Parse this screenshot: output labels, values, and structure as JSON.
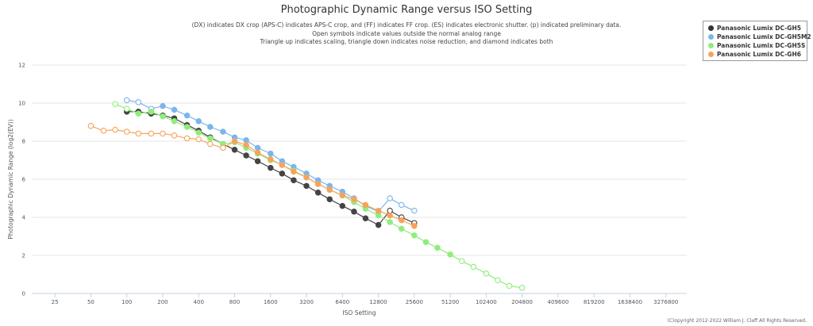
{
  "chart_data": {
    "type": "line",
    "title": "Photographic Dynamic Range versus ISO Setting",
    "subtitle": [
      "(DX) indicates DX crop (APS-C) indicates APS-C crop, and (FF) indicates FF crop. (ES) indicates electronic shutter. (p) indicated preliminary data.",
      "Open symbols indicate values outside the normal analog range",
      "Triangle up indicates scaling, triangle down indicates noise reduction, and diamond indicates both"
    ],
    "xlabel": "ISO Setting",
    "ylabel": "Photographic Dynamic Range (log2(EV))",
    "x_scale": "log2",
    "x_ticks": [
      25,
      50,
      100,
      200,
      400,
      800,
      1600,
      3200,
      6400,
      12800,
      25600,
      51200,
      102400,
      204800,
      409600,
      819200,
      1638400,
      3276800
    ],
    "x_range": [
      16,
      4900000
    ],
    "y_ticks": [
      0,
      2,
      4,
      6,
      8,
      10,
      12
    ],
    "y_range": [
      0,
      12
    ],
    "grid": true,
    "legend_position": "top-right",
    "series": [
      {
        "name": "Panasonic Lumix DC-GH5",
        "color": "#444444",
        "x": [
          100,
          125,
          160,
          200,
          250,
          320,
          400,
          500,
          640,
          800,
          1000,
          1250,
          1600,
          2000,
          2500,
          3200,
          4000,
          5000,
          6400,
          8000,
          10000,
          12800,
          16000,
          20000,
          25600
        ],
        "y": [
          9.55,
          9.55,
          9.45,
          9.35,
          9.2,
          8.85,
          8.55,
          8.2,
          7.85,
          7.55,
          7.25,
          6.95,
          6.6,
          6.3,
          5.95,
          5.65,
          5.3,
          4.95,
          4.6,
          4.3,
          3.95,
          3.6,
          4.35,
          4.0,
          3.7
        ],
        "open": [
          false,
          false,
          false,
          false,
          false,
          false,
          false,
          false,
          false,
          false,
          false,
          false,
          false,
          false,
          false,
          false,
          false,
          false,
          false,
          false,
          false,
          false,
          true,
          true,
          true
        ]
      },
      {
        "name": "Panasonic Lumix DC-GH5M2",
        "color": "#7cb5ec",
        "x": [
          100,
          125,
          160,
          200,
          250,
          320,
          400,
          500,
          640,
          800,
          1000,
          1250,
          1600,
          2000,
          2500,
          3200,
          4000,
          5000,
          6400,
          8000,
          10000,
          12800,
          16000,
          20000,
          25600
        ],
        "y": [
          10.15,
          10.05,
          9.7,
          9.85,
          9.65,
          9.35,
          9.05,
          8.75,
          8.5,
          8.2,
          8.05,
          7.65,
          7.35,
          6.95,
          6.65,
          6.3,
          5.95,
          5.65,
          5.35,
          5.0,
          4.6,
          4.3,
          5.0,
          4.65,
          4.35
        ],
        "open": [
          true,
          true,
          true,
          false,
          false,
          false,
          false,
          false,
          false,
          false,
          false,
          false,
          false,
          false,
          false,
          false,
          false,
          false,
          false,
          false,
          false,
          false,
          true,
          true,
          true
        ]
      },
      {
        "name": "Panasonic Lumix DC-GH5S",
        "color": "#90ed7d",
        "x": [
          80,
          100,
          125,
          160,
          200,
          250,
          320,
          400,
          500,
          640,
          800,
          1000,
          1250,
          1600,
          2000,
          2500,
          3200,
          4000,
          5000,
          6400,
          8000,
          10000,
          12800,
          16000,
          20000,
          25600,
          32000,
          40000,
          51200,
          64000,
          80000,
          102400,
          128000,
          160000,
          204800
        ],
        "y": [
          9.95,
          9.7,
          9.45,
          9.55,
          9.3,
          9.05,
          8.75,
          8.45,
          8.15,
          7.85,
          7.95,
          7.65,
          7.35,
          7.0,
          6.75,
          6.45,
          6.1,
          5.75,
          5.45,
          5.15,
          4.8,
          4.45,
          4.1,
          3.75,
          3.4,
          3.05,
          2.7,
          2.4,
          2.05,
          1.7,
          1.4,
          1.05,
          0.7,
          0.4,
          0.3
        ],
        "open": [
          true,
          true,
          false,
          false,
          false,
          false,
          false,
          false,
          false,
          false,
          false,
          false,
          false,
          false,
          false,
          false,
          false,
          false,
          false,
          false,
          false,
          false,
          false,
          false,
          false,
          false,
          false,
          false,
          false,
          true,
          true,
          true,
          true,
          true,
          true
        ]
      },
      {
        "name": "Panasonic Lumix DC-GH6",
        "color": "#f7a35c",
        "x": [
          50,
          64,
          80,
          100,
          125,
          160,
          200,
          250,
          320,
          400,
          500,
          640,
          800,
          1000,
          1250,
          1600,
          2000,
          2500,
          3200,
          4000,
          5000,
          6400,
          8000,
          10000,
          12800,
          16000,
          20000,
          25600
        ],
        "y": [
          8.8,
          8.55,
          8.6,
          8.5,
          8.4,
          8.4,
          8.4,
          8.3,
          8.15,
          8.1,
          7.85,
          7.65,
          8.0,
          7.8,
          7.4,
          7.05,
          6.75,
          6.4,
          6.1,
          5.75,
          5.45,
          5.15,
          4.95,
          4.65,
          4.35,
          4.1,
          3.85,
          3.55
        ],
        "open": [
          true,
          true,
          true,
          true,
          true,
          true,
          true,
          true,
          true,
          true,
          true,
          true,
          false,
          false,
          false,
          false,
          false,
          false,
          false,
          false,
          false,
          false,
          false,
          false,
          false,
          false,
          false,
          false
        ]
      }
    ]
  },
  "copyright": "(C)opyright 2012-2022 William J. Claff All Rights Reserved."
}
